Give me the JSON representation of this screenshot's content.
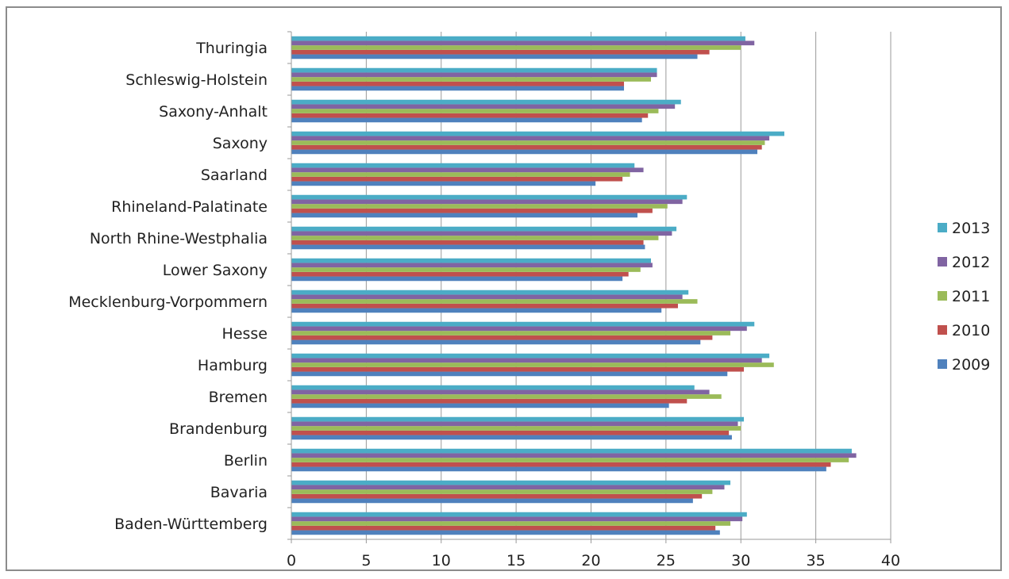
{
  "chart_data": {
    "type": "bar",
    "orientation": "horizontal",
    "categories": [
      "Baden-Württemberg",
      "Bavaria",
      "Berlin",
      "Brandenburg",
      "Bremen",
      "Hamburg",
      "Hesse",
      "Mecklenburg-Vorpommern",
      "Lower Saxony",
      "North Rhine-Westphalia",
      "Rhineland-Palatinate",
      "Saarland",
      "Saxony",
      "Saxony-Anhalt",
      "Schleswig-Holstein",
      "Thuringia"
    ],
    "series": [
      {
        "name": "2009",
        "color": "#4f81bd",
        "values": [
          28.6,
          26.8,
          35.7,
          29.4,
          25.2,
          29.1,
          27.3,
          24.7,
          22.1,
          23.6,
          23.1,
          20.3,
          31.1,
          23.4,
          22.2,
          27.1
        ]
      },
      {
        "name": "2010",
        "color": "#c0504d",
        "values": [
          28.3,
          27.4,
          36.0,
          29.2,
          26.4,
          30.2,
          28.1,
          25.8,
          22.5,
          23.5,
          24.1,
          22.1,
          31.4,
          23.8,
          22.2,
          27.9
        ]
      },
      {
        "name": "2011",
        "color": "#9bbb59",
        "values": [
          29.3,
          28.1,
          37.2,
          30.0,
          28.7,
          32.2,
          29.3,
          27.1,
          23.3,
          24.5,
          25.1,
          22.6,
          31.6,
          24.5,
          24.0,
          30.0
        ]
      },
      {
        "name": "2012",
        "color": "#8064a2",
        "values": [
          30.1,
          28.9,
          37.7,
          29.8,
          27.9,
          31.4,
          30.4,
          26.1,
          24.1,
          25.4,
          26.1,
          23.5,
          31.9,
          25.6,
          24.4,
          30.9
        ]
      },
      {
        "name": "2013",
        "color": "#4bacc6",
        "values": [
          30.4,
          29.3,
          37.4,
          30.2,
          26.9,
          31.9,
          30.9,
          26.5,
          24.0,
          25.7,
          26.4,
          22.9,
          32.9,
          26.0,
          24.4,
          30.3
        ]
      }
    ],
    "legend_order": [
      "2013",
      "2012",
      "2011",
      "2010",
      "2009"
    ],
    "xlim": [
      0,
      40
    ],
    "xticks": [
      "0",
      "5",
      "10",
      "15",
      "20",
      "25",
      "30",
      "35",
      "40"
    ],
    "grid": "vertical",
    "legend_position": "right",
    "title": "",
    "xlabel": "",
    "ylabel": ""
  }
}
